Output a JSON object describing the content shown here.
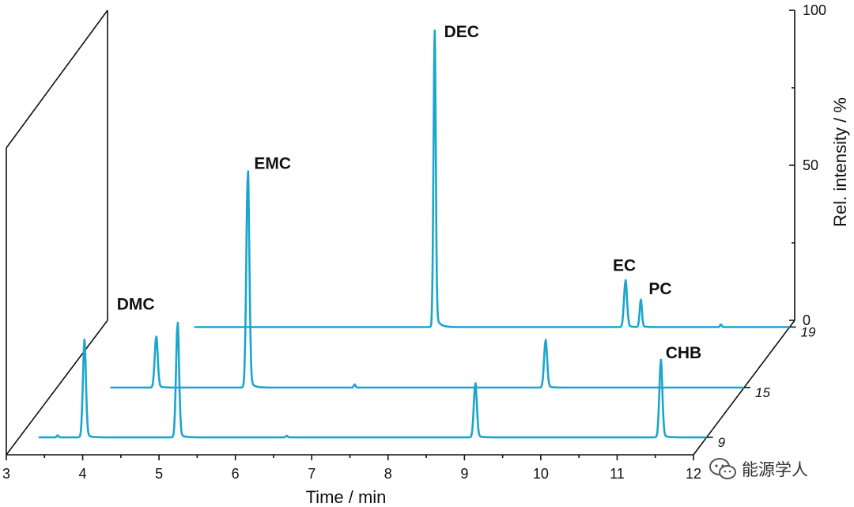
{
  "chart_data": {
    "type": "line",
    "style": "3d-waterfall",
    "title": "",
    "xlabel": "Time / min",
    "zlabel": "Rel. intensity / %",
    "xlim": [
      3,
      12
    ],
    "zlim": [
      0,
      100
    ],
    "x_ticks": [
      "3",
      "4",
      "5",
      "6",
      "7",
      "8",
      "9",
      "10",
      "11",
      "12"
    ],
    "z_ticks": [
      "0",
      "50",
      "100"
    ],
    "depth_ticks": [
      "9",
      "15",
      "19"
    ],
    "colors": {
      "trace": "#1aa6cc",
      "axis": "#111111"
    },
    "series": [
      {
        "name": "9",
        "baseline_noise": [
          [
            3.5,
            0.6
          ],
          [
            6.5,
            0.5
          ]
        ],
        "peaks": [
          {
            "x": 3.85,
            "height": 30,
            "width": 0.02
          },
          {
            "x": 5.07,
            "height": 36,
            "width": 0.02
          },
          {
            "x": 8.97,
            "height": 17,
            "width": 0.02
          },
          {
            "x": 11.4,
            "height": 24,
            "width": 0.02
          }
        ]
      },
      {
        "name": "15",
        "baseline_noise": [
          [
            6.9,
            1.0
          ]
        ],
        "peaks": [
          {
            "x": 4.3,
            "height": 16,
            "width": 0.02
          },
          {
            "x": 5.5,
            "height": 68,
            "width": 0.02
          },
          {
            "x": 9.4,
            "height": 15,
            "width": 0.02
          }
        ]
      },
      {
        "name": "19",
        "baseline_noise": [
          [
            11.1,
            0.8
          ]
        ],
        "peaks": [
          {
            "x": 7.35,
            "height": 92,
            "width": 0.015
          },
          {
            "x": 9.85,
            "height": 14.5,
            "width": 0.02
          },
          {
            "x": 10.05,
            "height": 8.5,
            "width": 0.015
          }
        ]
      }
    ],
    "annotations": [
      {
        "text": "DMC",
        "series": "15",
        "x": 4.3
      },
      {
        "text": "EMC",
        "series": "15",
        "x": 5.5
      },
      {
        "text": "DEC",
        "series": "19",
        "x": 7.35
      },
      {
        "text": "EC",
        "series": "19",
        "x": 9.85
      },
      {
        "text": "PC",
        "series": "19",
        "x": 10.05
      },
      {
        "text": "CHB",
        "series": "9",
        "x": 11.4
      }
    ]
  },
  "watermark": {
    "text": "能源学人",
    "icon": "wechat-icon"
  }
}
